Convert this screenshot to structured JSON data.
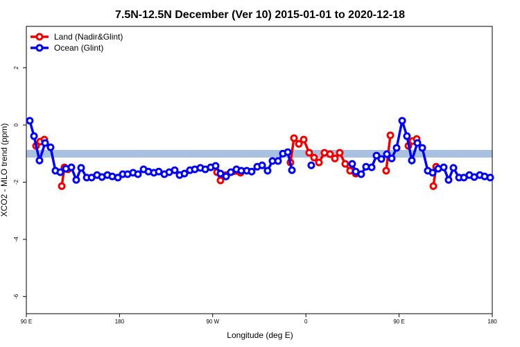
{
  "chart_data": {
    "type": "line",
    "title": "7.5N-12.5N December (Ver 10)   2015-01-01 to 2020-12-18",
    "x_label": "Longitude (deg E)",
    "y_label": "XCO2 - MLO trend (ppm)",
    "xlim": [
      90,
      540
    ],
    "xticks": [
      {
        "value": 90,
        "label": "90 E"
      },
      {
        "value": 180,
        "label": "180"
      },
      {
        "value": 270,
        "label": "90 W"
      },
      {
        "value": 360,
        "label": "0"
      },
      {
        "value": 450,
        "label": "90 E"
      },
      {
        "value": 540,
        "label": "180"
      }
    ],
    "ylim": [
      -6.6,
      3.45
    ],
    "yticks": [
      2,
      0,
      -2,
      -4,
      -6
    ],
    "legend": "top-left",
    "reference_band": {
      "ylim": [
        -1.14,
        -0.87
      ],
      "color": "#a9c1de"
    },
    "series": [
      {
        "name": "Land (Nadir&Glint)",
        "color": "#ee0000",
        "x": [
          99.4,
          103.4,
          107.4,
          null,
          124.2,
          126.8,
          130.2,
          null,
          274.2,
          277.5,
          282.9,
          296.9,
          null,
          345.1,
          348.5,
          353.2,
          357.9,
          363.2,
          367.9,
          372.6,
          377.9,
          383.3,
          388,
          392.7,
          398,
          402.7,
          408.1,
          null,
          437.5,
          441.6,
          null,
          459,
          463,
          467,
          null,
          483.1,
          485.8
        ],
        "values": [
          -0.73,
          -0.58,
          -0.51,
          null,
          -2.14,
          -1.48,
          -1.55,
          null,
          -1.65,
          -1.94,
          -1.75,
          -1.67,
          null,
          -1.31,
          -0.46,
          -0.66,
          -0.51,
          -0.97,
          -1.14,
          -1.31,
          -0.97,
          -1.02,
          -1.17,
          -0.97,
          -1.36,
          -1.6,
          -1.7,
          null,
          -1.6,
          -0.36,
          null,
          -0.73,
          -0.56,
          -0.49,
          null,
          -2.14,
          -1.46
        ]
      },
      {
        "name": "Ocean (Glint)",
        "color": "#0000ee",
        "x": [
          93.3,
          97.4,
          102.7,
          108.1,
          113.4,
          118.1,
          122.8,
          128.2,
          133.5,
          138.2,
          142.9,
          148.3,
          153,
          158.3,
          163,
          168.3,
          173,
          178.4,
          183.1,
          187.8,
          193.1,
          197.8,
          203.2,
          207.9,
          213.2,
          217.9,
          223.3,
          228,
          233.3,
          238,
          242.7,
          248,
          252.7,
          258.1,
          262.8,
          268.1,
          272.8,
          277.5,
          282.9,
          287.5,
          292.9,
          297.6,
          302.9,
          307.6,
          313,
          317.7,
          323,
          327.7,
          333.1,
          337.8,
          342.5,
          346.5,
          null,
          365.2,
          null,
          404.7,
          408.1,
          413.4,
          418.1,
          423.5,
          428.2,
          432.9,
          438.2,
          442.9,
          447.6,
          453,
          457.6,
          462.3,
          467.7,
          472.4,
          477.7,
          482.4,
          487.8,
          493.1,
          497.8,
          502.5,
          507.9,
          512.6,
          517.9,
          522.6,
          528,
          532.6,
          538
        ],
        "values": [
          0.15,
          -0.39,
          -1.24,
          -0.63,
          -0.78,
          -1.6,
          -1.65,
          -1.53,
          -1.48,
          -1.92,
          -1.5,
          -1.84,
          -1.84,
          -1.75,
          -1.82,
          -1.75,
          -1.8,
          -1.84,
          -1.72,
          -1.72,
          -1.67,
          -1.72,
          -1.55,
          -1.63,
          -1.67,
          -1.63,
          -1.72,
          -1.65,
          -1.58,
          -1.75,
          -1.7,
          -1.58,
          -1.55,
          -1.5,
          -1.55,
          -1.48,
          -1.43,
          -1.7,
          -1.8,
          -1.65,
          -1.55,
          -1.6,
          -1.6,
          -1.63,
          -1.46,
          -1.41,
          -1.6,
          -1.26,
          -1.26,
          -1.0,
          -0.95,
          -1.58,
          null,
          -1.41,
          null,
          -1.36,
          -1.63,
          -1.72,
          -1.46,
          -1.48,
          -1.07,
          -1.19,
          -1.02,
          -1.17,
          -0.8,
          0.15,
          -0.39,
          -1.24,
          -0.63,
          -0.8,
          -1.6,
          -1.67,
          -1.53,
          -1.48,
          -1.92,
          -1.5,
          -1.84,
          -1.84,
          -1.75,
          -1.82,
          -1.75,
          -1.8,
          -1.84
        ]
      }
    ]
  }
}
